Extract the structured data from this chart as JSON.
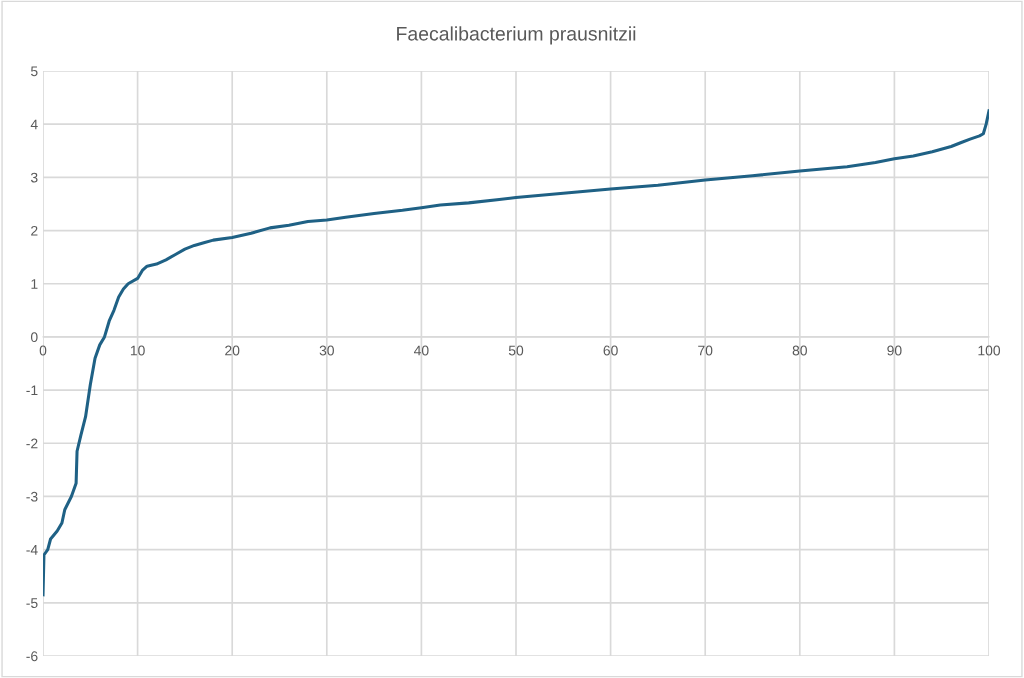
{
  "chart_data": {
    "type": "line",
    "title": "Faecalibacterium prausnitzii",
    "x": [
      0,
      0.1,
      0.5,
      0.8,
      1.5,
      2.0,
      2.3,
      3.0,
      3.5,
      3.6,
      4.0,
      4.5,
      5.0,
      5.5,
      6.0,
      6.5,
      7.0,
      7.5,
      8.0,
      8.5,
      9.0,
      10,
      10.5,
      11,
      12,
      13,
      14,
      15,
      16,
      17,
      18,
      20,
      22,
      24,
      26,
      28,
      30,
      32,
      35,
      38,
      40,
      42,
      45,
      48,
      50,
      55,
      60,
      65,
      70,
      75,
      80,
      85,
      88,
      90,
      92,
      94,
      96,
      97,
      98,
      99,
      99.4,
      99.7,
      100
    ],
    "series": [
      {
        "color": "#1f6185",
        "values": [
          -4.85,
          -4.1,
          -4.0,
          -3.8,
          -3.65,
          -3.5,
          -3.25,
          -3.0,
          -2.75,
          -2.15,
          -1.85,
          -1.5,
          -0.9,
          -0.4,
          -0.15,
          0.0,
          0.3,
          0.5,
          0.75,
          0.9,
          1.0,
          1.1,
          1.25,
          1.33,
          1.37,
          1.45,
          1.55,
          1.65,
          1.72,
          1.77,
          1.82,
          1.87,
          1.95,
          2.05,
          2.1,
          2.17,
          2.2,
          2.25,
          2.32,
          2.38,
          2.43,
          2.48,
          2.52,
          2.58,
          2.62,
          2.7,
          2.78,
          2.85,
          2.95,
          3.03,
          3.12,
          3.2,
          3.28,
          3.35,
          3.4,
          3.48,
          3.58,
          3.65,
          3.72,
          3.78,
          3.82,
          4.0,
          4.25
        ]
      }
    ],
    "xlim": [
      0,
      100
    ],
    "xticks": [
      0,
      10,
      20,
      30,
      40,
      50,
      60,
      70,
      80,
      90,
      100
    ],
    "ylim": [
      -6,
      5
    ],
    "yticks": [
      -6,
      -5,
      -4,
      -3,
      -2,
      -1,
      0,
      1,
      2,
      3,
      4,
      5
    ],
    "grid": true,
    "marker": "none",
    "line_style": "solid"
  }
}
